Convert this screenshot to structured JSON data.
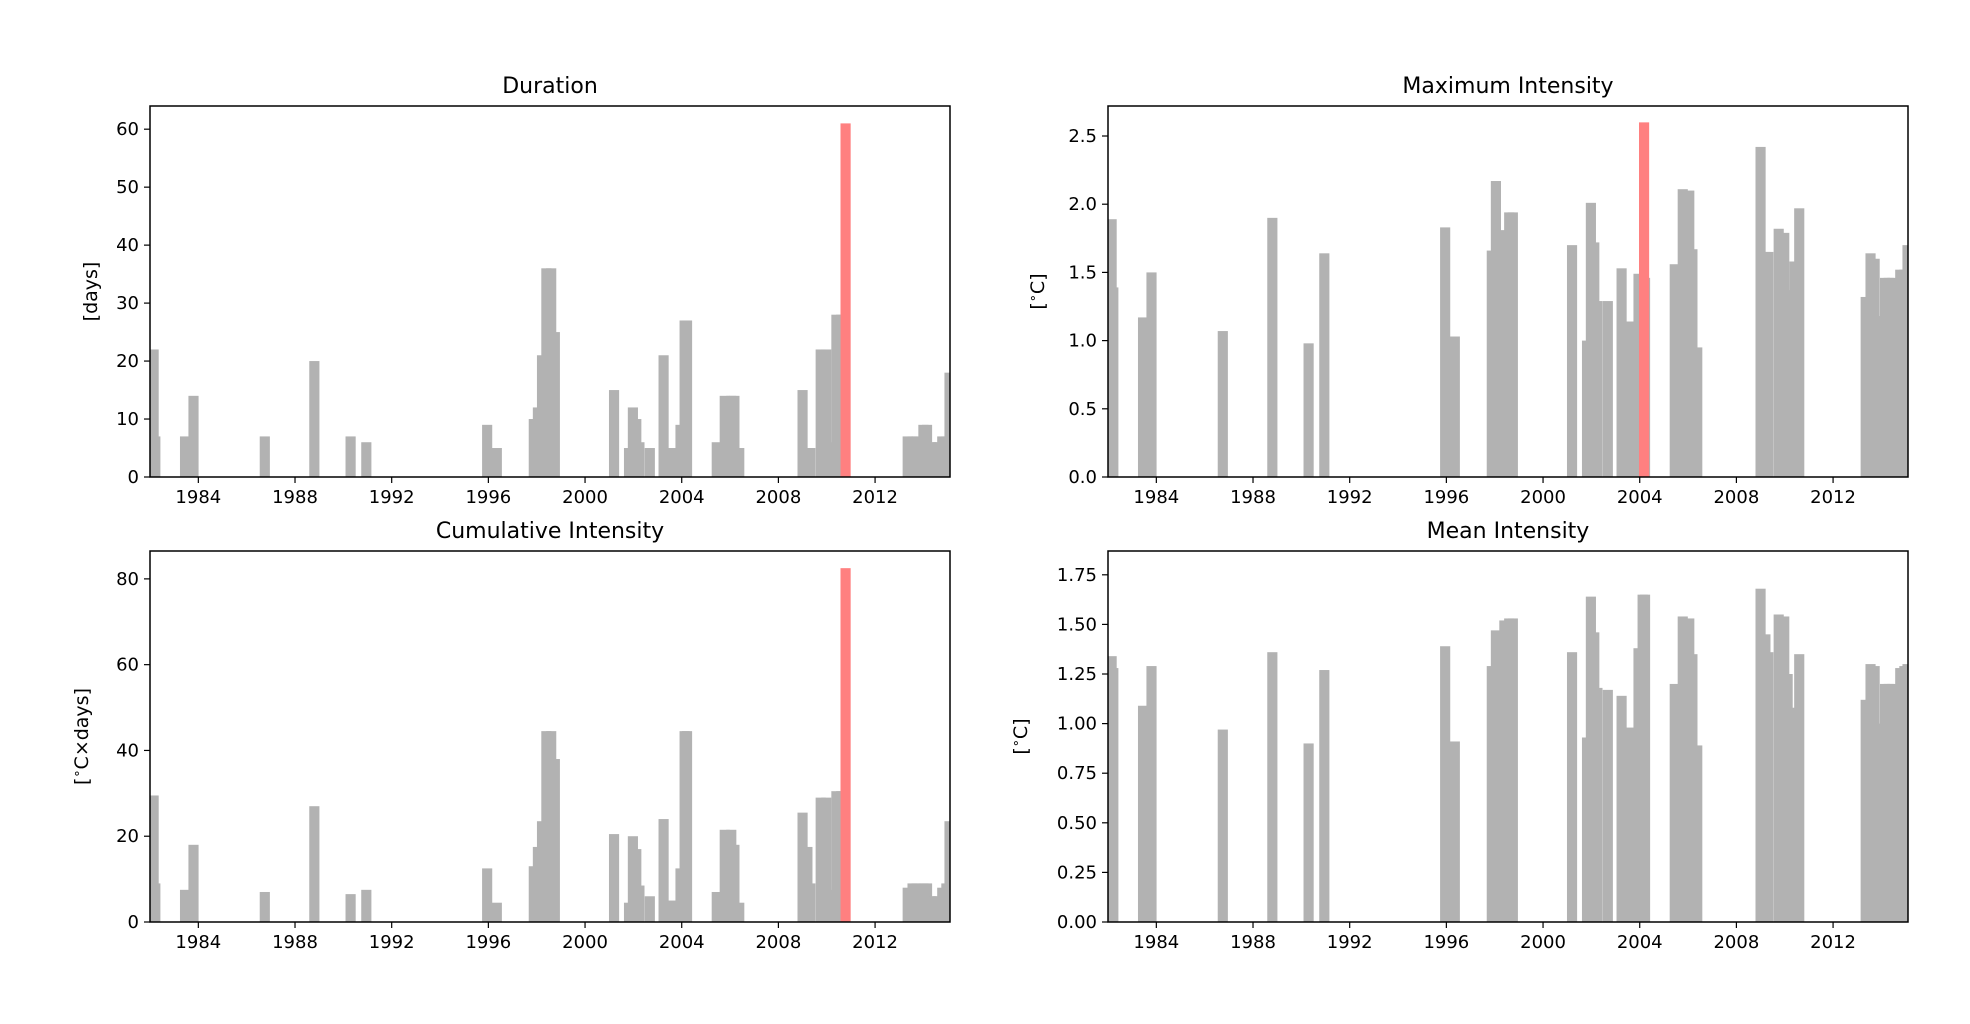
{
  "colors": {
    "bar": "#b2b2b2",
    "highlight": "#ff8080",
    "axis": "#000000",
    "background": "#ffffff"
  },
  "chart_data": [
    {
      "type": "bar",
      "title": "Duration",
      "xlabel": "",
      "ylabel": "[days]",
      "xlim": [
        1982.0,
        2015.1
      ],
      "ylim": [
        0,
        64
      ],
      "yticks": [
        0,
        10,
        20,
        30,
        40,
        50,
        60
      ],
      "ytick_labels": [
        "0",
        "10",
        "20",
        "30",
        "40",
        "50",
        "60"
      ],
      "xticks": [
        1984,
        1988,
        1992,
        1996,
        2000,
        2004,
        2008,
        2012
      ],
      "xtick_labels": [
        "1984",
        "1988",
        "1992",
        "1996",
        "2000",
        "2004",
        "2008",
        "2012"
      ],
      "grid": false,
      "bar_width_years": 0.42,
      "highlight_index": 52,
      "x": [
        1982.15,
        1982.22,
        1983.45,
        1983.8,
        1986.75,
        1988.8,
        1990.3,
        1990.95,
        1995.95,
        1996.35,
        1997.88,
        1998.05,
        1998.22,
        1998.4,
        1998.6,
        1998.75,
        2001.2,
        2001.82,
        2001.98,
        2002.12,
        2002.25,
        2002.68,
        2003.25,
        2003.65,
        2003.95,
        2004.12,
        2004.22,
        2005.45,
        2005.78,
        2006.05,
        2006.18,
        2006.38,
        2009.0,
        2009.2,
        2009.32,
        2009.75,
        2009.98,
        2010.12,
        2010.4,
        2010.6,
        2013.35,
        2013.55,
        2013.72,
        2013.88,
        2014.0,
        2014.15,
        2014.3,
        2014.45,
        2014.62,
        2014.78,
        2014.95,
        2015.08,
        2010.78
      ],
      "values": [
        22,
        7,
        7,
        14,
        7,
        20,
        7,
        6,
        9,
        5,
        10,
        12,
        21,
        36,
        36,
        25,
        15,
        5,
        12,
        10,
        6,
        5,
        21,
        5,
        9,
        27,
        27,
        6,
        14,
        14,
        14,
        5,
        15,
        5,
        5,
        22,
        22,
        6,
        28,
        28,
        7,
        7,
        7,
        6,
        9,
        9,
        6,
        6,
        6,
        7,
        7,
        18,
        61
      ]
    },
    {
      "type": "bar",
      "title": "Maximum Intensity",
      "xlabel": "",
      "ylabel": "[$^\\circ$C]",
      "xlim": [
        1982.0,
        2015.1
      ],
      "ylim": [
        0,
        2.72
      ],
      "yticks": [
        0,
        0.5,
        1,
        1.5,
        2,
        2.5
      ],
      "ytick_labels": [
        "0.0",
        "0.5",
        "1.0",
        "1.5",
        "2.0",
        "2.5"
      ],
      "xticks": [
        1984,
        1988,
        1992,
        1996,
        2000,
        2004,
        2008,
        2012
      ],
      "xtick_labels": [
        "1984",
        "1988",
        "1992",
        "1996",
        "2000",
        "2004",
        "2008",
        "2012"
      ],
      "grid": false,
      "bar_width_years": 0.42,
      "highlight_index": 52,
      "x": [
        1982.15,
        1982.22,
        1983.45,
        1983.8,
        1986.75,
        1988.8,
        1990.3,
        1990.95,
        1995.95,
        1996.35,
        1997.88,
        1998.05,
        1998.22,
        1998.4,
        1998.6,
        1998.75,
        2001.2,
        2001.82,
        2001.98,
        2002.12,
        2002.25,
        2002.68,
        2003.25,
        2003.65,
        2003.95,
        2004.12,
        2004.22,
        2005.45,
        2005.78,
        2006.05,
        2006.18,
        2006.38,
        2009.0,
        2009.2,
        2009.32,
        2009.75,
        2009.98,
        2010.12,
        2010.4,
        2010.6,
        2013.35,
        2013.55,
        2013.72,
        2013.88,
        2014.0,
        2014.15,
        2014.3,
        2014.45,
        2014.62,
        2014.78,
        2014.95,
        2015.08,
        2004.18
      ],
      "values": [
        1.89,
        1.39,
        1.17,
        1.5,
        1.07,
        1.9,
        0.98,
        1.64,
        1.83,
        1.03,
        1.66,
        2.17,
        1.7,
        1.81,
        1.94,
        1.94,
        1.7,
        1.0,
        2.01,
        1.72,
        1.29,
        1.29,
        1.53,
        1.14,
        1.49,
        1.46,
        1.46,
        1.56,
        2.11,
        2.1,
        1.67,
        0.95,
        2.42,
        1.65,
        1.65,
        1.82,
        1.79,
        1.37,
        1.58,
        1.97,
        1.32,
        1.64,
        1.6,
        1.14,
        1.18,
        1.46,
        1.46,
        1.46,
        0,
        1.52,
        1.52,
        1.7,
        2.6
      ]
    },
    {
      "type": "bar",
      "title": "Cumulative Intensity",
      "xlabel": "",
      "ylabel": "[$^\\circ$C×days]",
      "xlim": [
        1982.0,
        2015.1
      ],
      "ylim": [
        0,
        86.5
      ],
      "yticks": [
        0,
        20,
        40,
        60,
        80
      ],
      "ytick_labels": [
        "0",
        "20",
        "40",
        "60",
        "80"
      ],
      "xticks": [
        1984,
        1988,
        1992,
        1996,
        2000,
        2004,
        2008,
        2012
      ],
      "xtick_labels": [
        "1984",
        "1988",
        "1992",
        "1996",
        "2000",
        "2004",
        "2008",
        "2012"
      ],
      "grid": false,
      "bar_width_years": 0.42,
      "highlight_index": 52,
      "x": [
        1982.15,
        1982.22,
        1983.45,
        1983.8,
        1986.75,
        1988.8,
        1990.3,
        1990.95,
        1995.95,
        1996.35,
        1997.88,
        1998.05,
        1998.22,
        1998.4,
        1998.6,
        1998.75,
        2001.2,
        2001.82,
        2001.98,
        2002.12,
        2002.25,
        2002.68,
        2003.25,
        2003.65,
        2003.95,
        2004.12,
        2004.22,
        2005.45,
        2005.78,
        2006.05,
        2006.18,
        2006.38,
        2009.0,
        2009.2,
        2009.32,
        2009.75,
        2009.98,
        2010.12,
        2010.4,
        2010.6,
        2013.35,
        2013.55,
        2013.72,
        2013.88,
        2014.0,
        2014.15,
        2014.3,
        2014.45,
        2014.62,
        2014.78,
        2014.95,
        2015.08,
        2010.78
      ],
      "values": [
        29.5,
        9,
        7.5,
        18,
        7,
        27,
        6.5,
        7.5,
        12.5,
        4.5,
        13,
        17.5,
        23.5,
        44.5,
        44.5,
        38,
        20.5,
        4.5,
        20,
        17,
        8.5,
        6,
        24,
        5,
        12.5,
        44.5,
        44.5,
        7,
        21.5,
        21.5,
        18,
        4.5,
        25.5,
        17.5,
        9,
        29,
        29,
        7.5,
        30.5,
        30.5,
        8,
        9,
        9,
        6,
        9,
        9,
        6,
        6,
        6,
        8,
        9,
        23.5,
        82.5
      ]
    },
    {
      "type": "bar",
      "title": "Mean Intensity",
      "xlabel": "",
      "ylabel": "[$^\\circ$C]",
      "xlim": [
        1982.0,
        2015.1
      ],
      "ylim": [
        0,
        1.87
      ],
      "yticks": [
        0,
        0.25,
        0.5,
        0.75,
        1,
        1.25,
        1.5,
        1.75
      ],
      "ytick_labels": [
        "0.00",
        "0.25",
        "0.50",
        "0.75",
        "1.00",
        "1.25",
        "1.50",
        "1.75"
      ],
      "xticks": [
        1984,
        1988,
        1992,
        1996,
        2000,
        2004,
        2008,
        2012
      ],
      "xtick_labels": [
        "1984",
        "1988",
        "1992",
        "1996",
        "2000",
        "2004",
        "2008",
        "2012"
      ],
      "grid": false,
      "bar_width_years": 0.42,
      "highlight_index": null,
      "x": [
        1982.15,
        1982.22,
        1983.45,
        1983.8,
        1986.75,
        1988.8,
        1990.3,
        1990.95,
        1995.95,
        1996.35,
        1997.88,
        1998.05,
        1998.22,
        1998.4,
        1998.6,
        1998.75,
        2001.2,
        2001.82,
        2001.98,
        2002.12,
        2002.25,
        2002.68,
        2003.25,
        2003.65,
        2003.95,
        2004.12,
        2004.22,
        2005.45,
        2005.78,
        2006.05,
        2006.18,
        2006.38,
        2009.0,
        2009.2,
        2009.32,
        2009.75,
        2009.98,
        2010.12,
        2010.4,
        2010.6,
        2013.35,
        2013.55,
        2013.72,
        2013.88,
        2014.0,
        2014.15,
        2014.3,
        2014.45,
        2014.62,
        2014.78,
        2014.95,
        2015.08
      ],
      "values": [
        1.34,
        1.28,
        1.09,
        1.29,
        0.97,
        1.36,
        0.9,
        1.27,
        1.39,
        0.91,
        1.29,
        1.47,
        1.31,
        1.52,
        1.53,
        1.53,
        1.36,
        0.93,
        1.64,
        1.46,
        1.18,
        1.17,
        1.14,
        0.98,
        1.38,
        1.65,
        1.65,
        1.2,
        1.54,
        1.53,
        1.35,
        0.89,
        1.68,
        1.45,
        1.36,
        1.55,
        1.54,
        1.25,
        1.08,
        1.35,
        1.12,
        1.3,
        1.29,
        0.94,
        1.0,
        1.2,
        1.2,
        1.2,
        0,
        1.28,
        1.29,
        1.3
      ]
    }
  ]
}
